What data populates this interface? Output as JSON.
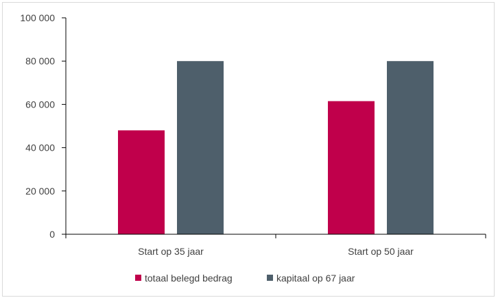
{
  "chart_data": {
    "type": "bar",
    "categories": [
      "Start op 35 jaar",
      "Start op 50 jaar"
    ],
    "series": [
      {
        "name": "totaal belegd bedrag",
        "color": "#c0004b",
        "values": [
          48000,
          61500
        ]
      },
      {
        "name": "kapitaal op 67 jaar",
        "color": "#4e5f6b",
        "values": [
          80000,
          80000
        ]
      }
    ],
    "yticks": [
      "0",
      "20 000",
      "40 000",
      "60 000",
      "80 000",
      "100 000"
    ],
    "ylim": [
      0,
      100000
    ],
    "grid": false,
    "legend_position": "bottom",
    "axis_color": "#000000"
  }
}
